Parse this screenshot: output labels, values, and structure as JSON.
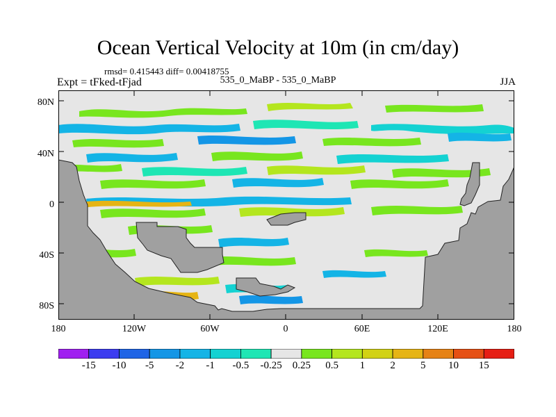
{
  "title": "Ocean Vertical Velocity at 10m (in cm/day)",
  "stats": "rmsd= 0.415443 diff= 0.00418755",
  "experiment": "Expt = tFked-tFjad",
  "period_label": "535_0_MaBP - 535_0_MaBP",
  "season": "JJA",
  "lat_ticks": [
    "80N",
    "40N",
    "0",
    "40S",
    "80S"
  ],
  "lon_ticks": [
    "180",
    "120W",
    "60W",
    "0",
    "60E",
    "120E",
    "180"
  ],
  "colorbar": {
    "labels": [
      "-15",
      "-10",
      "-5",
      "-2",
      "-1",
      "-0.5",
      "-0.25",
      "0.25",
      "0.5",
      "1",
      "2",
      "5",
      "10",
      "15"
    ],
    "colors": [
      "#a020f0",
      "#3c3cf0",
      "#1e64e6",
      "#1496e6",
      "#14b4e6",
      "#14d2d2",
      "#1ee6b4",
      "#e6e6e6",
      "#78e61e",
      "#b4e61e",
      "#d2d214",
      "#e6b414",
      "#e68214",
      "#e65014",
      "#e61e14"
    ]
  },
  "colors": {
    "land": "#a0a0a0",
    "ocean_neutral": "#e6e6e6"
  }
}
